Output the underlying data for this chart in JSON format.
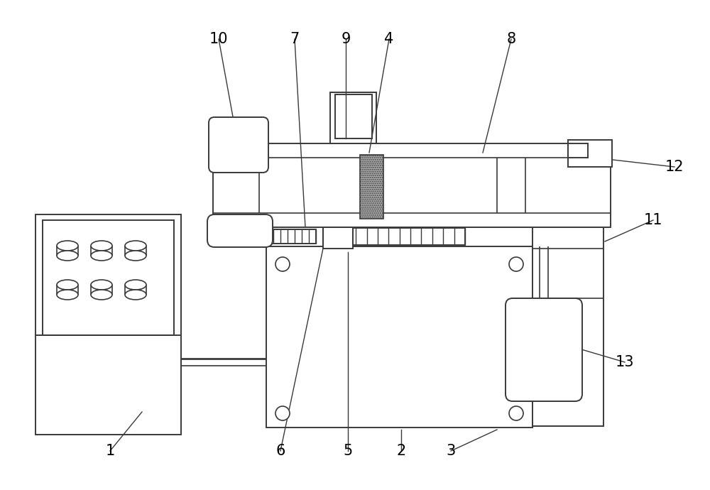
{
  "bg_color": "#ffffff",
  "line_color": "#3a3a3a",
  "line_width": 1.4,
  "fig_width": 10.0,
  "fig_height": 6.9
}
